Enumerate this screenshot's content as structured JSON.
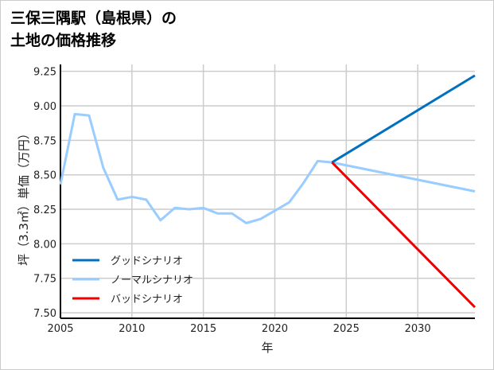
{
  "chart_data": {
    "type": "line",
    "title": "三保三隅駅（島根県）の土地の価格推移",
    "title_lines": [
      "三保三隅駅（島根県）の",
      "土地の価格推移"
    ],
    "xlabel": "年",
    "ylabel": "坪（3.3㎡）単価（万円）",
    "xlim": [
      2005,
      2034
    ],
    "ylim": [
      7.46,
      9.3
    ],
    "xticks": [
      2005,
      2010,
      2015,
      2020,
      2025,
      2030
    ],
    "yticks": [
      7.5,
      7.75,
      8.0,
      8.25,
      8.5,
      8.75,
      9.0,
      9.25
    ],
    "ytick_labels": [
      "7.50",
      "7.75",
      "8.00",
      "8.25",
      "8.50",
      "8.75",
      "9.00",
      "9.25"
    ],
    "grid": true,
    "legend_position": "bottom-left",
    "series": [
      {
        "name": "グッドシナリオ",
        "color": "#0070c0",
        "x": [
          2024,
          2034
        ],
        "y": [
          8.59,
          9.22
        ]
      },
      {
        "name": "ノーマルシナリオ",
        "color": "#99ccff",
        "x": [
          2005,
          2006,
          2007,
          2008,
          2009,
          2010,
          2011,
          2012,
          2013,
          2014,
          2015,
          2016,
          2017,
          2018,
          2019,
          2020,
          2021,
          2022,
          2023,
          2024,
          2034
        ],
        "y": [
          8.43,
          8.94,
          8.93,
          8.55,
          8.32,
          8.34,
          8.32,
          8.17,
          8.26,
          8.25,
          8.26,
          8.22,
          8.22,
          8.15,
          8.18,
          8.24,
          8.3,
          8.44,
          8.6,
          8.59,
          8.38
        ]
      },
      {
        "name": "バッドシナリオ",
        "color": "#ee0000",
        "x": [
          2024,
          2034
        ],
        "y": [
          8.59,
          7.54
        ]
      }
    ]
  }
}
